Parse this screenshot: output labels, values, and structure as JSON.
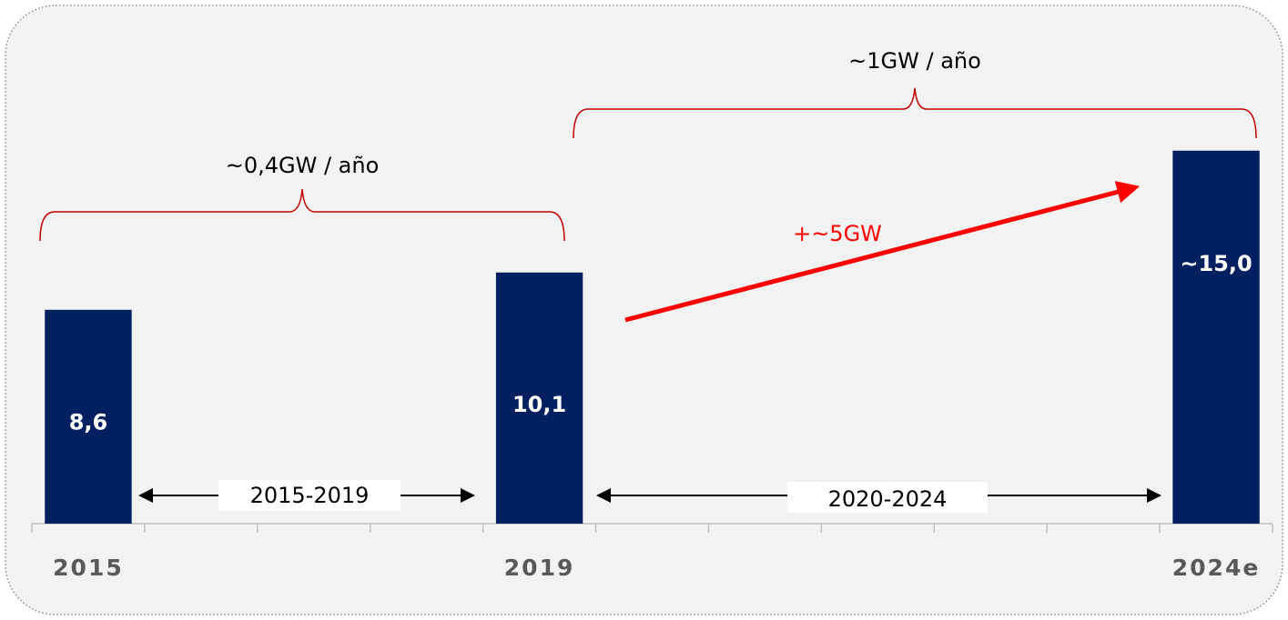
{
  "chart_data": {
    "type": "bar",
    "categories": [
      "2015",
      null,
      null,
      null,
      "2019",
      null,
      null,
      null,
      null,
      null,
      "2024e"
    ],
    "values": [
      8.6,
      null,
      null,
      null,
      10.1,
      null,
      null,
      null,
      null,
      null,
      15.0
    ],
    "value_labels": [
      "8,6",
      null,
      null,
      null,
      "10,1",
      null,
      null,
      null,
      null,
      null,
      "~15,0"
    ],
    "color": "#002060",
    "ylim": [
      0,
      20
    ],
    "annotations": [
      {
        "text": "~0,4GW / año"
      },
      {
        "text": "~1GW / año"
      },
      {
        "text": "+~5GW"
      },
      {
        "text": "2015-2019"
      },
      {
        "text": "2020-2024"
      }
    ]
  }
}
